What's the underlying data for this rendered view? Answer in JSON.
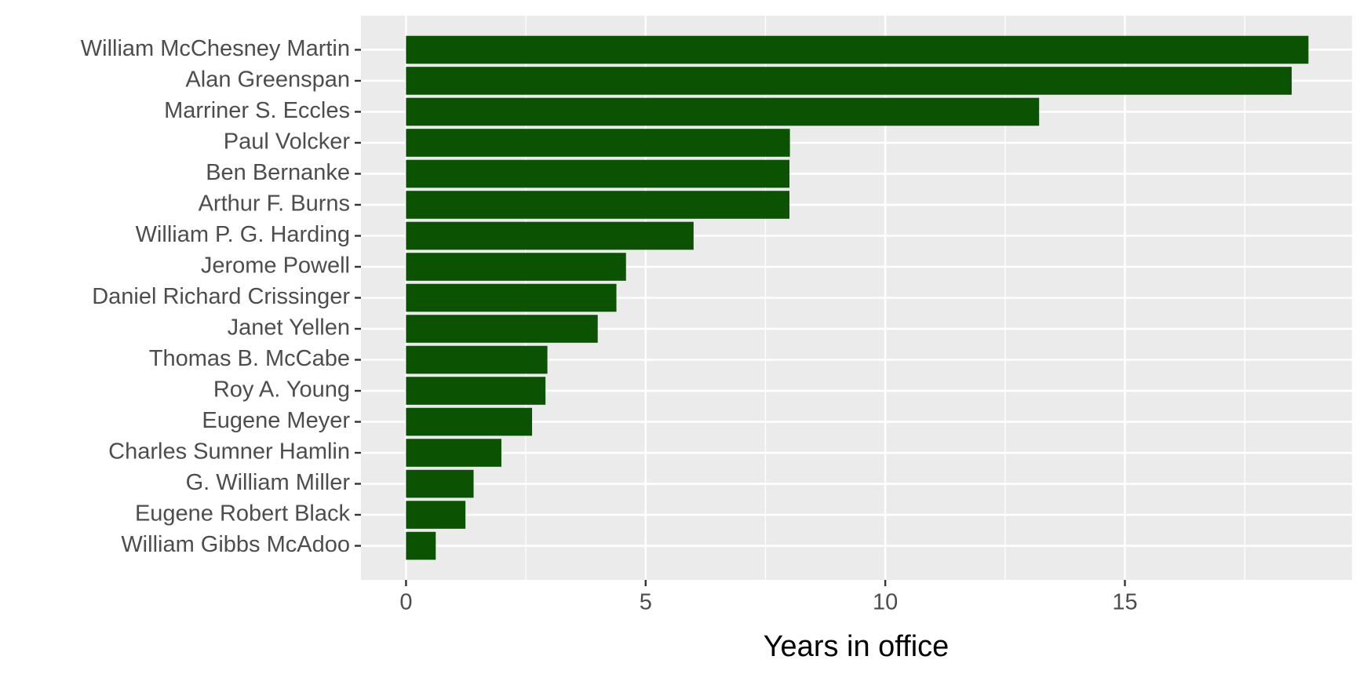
{
  "chart_data": {
    "type": "bar",
    "orientation": "horizontal",
    "x_label": "Years in office",
    "categories": [
      "William McChesney Martin",
      "Alan Greenspan",
      "Marriner S. Eccles",
      "Paul Volcker",
      "Ben Bernanke",
      "Arthur F. Burns",
      "William P. G. Harding",
      "Jerome Powell",
      "Daniel Richard Crissinger",
      "Janet Yellen",
      "Thomas B. McCabe",
      "Roy A. Young",
      "Eugene Meyer",
      "Charles Sumner Hamlin",
      "G. William Miller",
      "Eugene Robert Black",
      "William Gibbs McAdoo"
    ],
    "values": [
      18.83,
      18.48,
      13.21,
      8.01,
      8.0,
      8.0,
      6.0,
      4.59,
      4.39,
      4.0,
      2.95,
      2.91,
      2.63,
      1.99,
      1.41,
      1.24,
      0.62
    ],
    "color": "#0b5303",
    "xlim": [
      -0.94,
      19.74
    ],
    "xticks": [
      0,
      5,
      10,
      15
    ],
    "xminorticks": [
      2.5,
      7.5,
      12.5,
      17.5
    ],
    "grid": true
  }
}
